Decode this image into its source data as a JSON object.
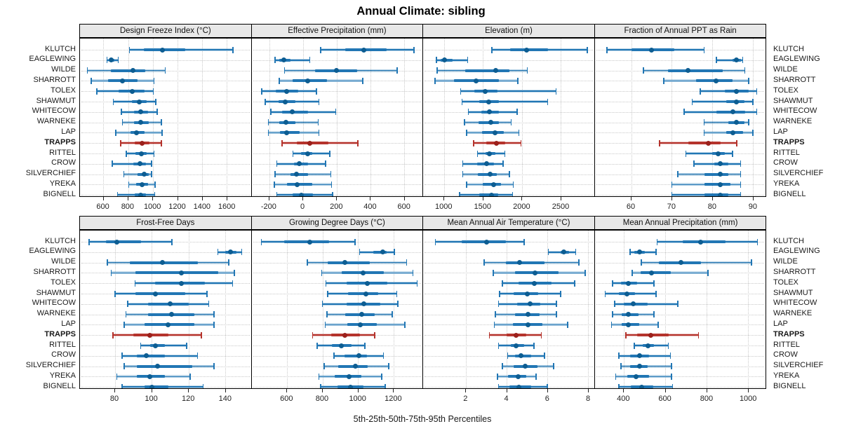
{
  "title": "Annual Climate: sibling",
  "caption": "5th-25th-50th-75th-95th Percentiles",
  "percentile_labels": [
    "5th",
    "25th",
    "50th",
    "75th",
    "95th"
  ],
  "stations": [
    "KLUTCH",
    "EAGLEWING",
    "WILDE",
    "SHARROTT",
    "TOLEX",
    "SHAWMUT",
    "WHITECOW",
    "WARNEKE",
    "LAP",
    "TRAPPS",
    "RITTEL",
    "CROW",
    "SILVERCHIEF",
    "YREKA",
    "BIGNELL"
  ],
  "highlight_station": "TRAPPS",
  "colors": {
    "normal_line": "#2176b4",
    "normal_band": "rgba(33,118,180,0.30)",
    "normal_dot": "#0d5d92",
    "highlight_line": "#b5332c",
    "highlight_band": "rgba(181,51,44,0.30)",
    "highlight_dot": "#9b211c",
    "strip_bg": "#e8e8e8",
    "grid": "#c9c9c9"
  },
  "chart_data": [
    {
      "type": "dotplot-interval",
      "id": "design-freeze-index",
      "title": "Design Freeze Index (°C)",
      "xlim": [
        410,
        1795
      ],
      "ticks": [
        600,
        800,
        1000,
        1200,
        1400,
        1600
      ],
      "series": {
        "KLUTCH": [
          810,
          930,
          1080,
          1260,
          1650
        ],
        "EAGLEWING": [
          630,
          650,
          665,
          690,
          720
        ],
        "WILDE": [
          470,
          660,
          840,
          940,
          1100
        ],
        "SHARROTT": [
          500,
          640,
          755,
          875,
          1010
        ],
        "TOLEX": [
          545,
          720,
          835,
          930,
          1005
        ],
        "SHAWMUT": [
          680,
          830,
          890,
          950,
          1025
        ],
        "WHITECOW": [
          745,
          845,
          900,
          960,
          1035
        ],
        "WARNEKE": [
          755,
          845,
          900,
          965,
          1070
        ],
        "LAP": [
          700,
          820,
          865,
          930,
          1075
        ],
        "TRAPPS": [
          740,
          855,
          915,
          975,
          1070
        ],
        "RITTEL": [
          785,
          860,
          905,
          950,
          1010
        ],
        "CROW": [
          670,
          840,
          895,
          945,
          990
        ],
        "SILVERCHIEF": [
          765,
          875,
          930,
          965,
          990
        ],
        "YREKA": [
          805,
          865,
          915,
          960,
          1020
        ],
        "BIGNELL": [
          715,
          855,
          900,
          945,
          1015
        ]
      }
    },
    {
      "type": "dotplot-interval",
      "id": "effective-precipitation",
      "title": "Effective Precipitation (mm)",
      "xlim": [
        -305,
        710
      ],
      "ticks": [
        -200,
        0,
        200,
        400,
        600
      ],
      "series": {
        "KLUTCH": [
          105,
          250,
          360,
          495,
          660
        ],
        "EAGLEWING": [
          -165,
          -140,
          -115,
          -75,
          40
        ],
        "WILDE": [
          -110,
          70,
          200,
          320,
          560
        ],
        "SHARROTT": [
          -140,
          -60,
          30,
          140,
          355
        ],
        "TOLEX": [
          -245,
          -160,
          -95,
          -30,
          80
        ],
        "SHAWMUT": [
          -225,
          -145,
          -105,
          -45,
          95
        ],
        "WHITECOW": [
          -190,
          -125,
          -65,
          30,
          195
        ],
        "WARNEKE": [
          -205,
          -140,
          -100,
          -45,
          90
        ],
        "LAP": [
          -205,
          -135,
          -95,
          -20,
          95
        ],
        "TRAPPS": [
          -125,
          -35,
          40,
          150,
          325
        ],
        "RITTEL": [
          -60,
          -10,
          30,
          55,
          160
        ],
        "CROW": [
          -155,
          -55,
          -20,
          30,
          135
        ],
        "SILVERCHIEF": [
          -165,
          -75,
          -40,
          30,
          165
        ],
        "YREKA": [
          -170,
          -95,
          -35,
          55,
          170
        ],
        "BIGNELL": [
          -155,
          -60,
          -10,
          60,
          175
        ]
      }
    },
    {
      "type": "dotplot-interval",
      "id": "elevation",
      "title": "Elevation (m)",
      "xlim": [
        730,
        2930
      ],
      "ticks": [
        1000,
        1500,
        2000,
        2500
      ],
      "series": {
        "KLUTCH": [
          1615,
          1845,
          2060,
          2330,
          2840
        ],
        "EAGLEWING": [
          900,
          955,
          1000,
          1110,
          1300
        ],
        "WILDE": [
          910,
          1270,
          1660,
          1840,
          2070
        ],
        "SHARROTT": [
          880,
          1130,
          1410,
          1700,
          1950
        ],
        "TOLEX": [
          1210,
          1390,
          1530,
          1680,
          2440
        ],
        "SHAWMUT": [
          1230,
          1450,
          1570,
          1700,
          2330
        ],
        "WHITECOW": [
          1310,
          1480,
          1580,
          1700,
          1940
        ],
        "WARNEKE": [
          1260,
          1440,
          1600,
          1700,
          1860
        ],
        "LAP": [
          1290,
          1490,
          1650,
          1770,
          1960
        ],
        "TRAPPS": [
          1380,
          1540,
          1670,
          1780,
          1990
        ],
        "RITTEL": [
          1430,
          1530,
          1580,
          1660,
          1780
        ],
        "CROW": [
          1240,
          1420,
          1550,
          1640,
          1760
        ],
        "SILVERCHIEF": [
          1240,
          1430,
          1590,
          1680,
          1840
        ],
        "YREKA": [
          1290,
          1500,
          1640,
          1730,
          1890
        ],
        "BIGNELL": [
          1200,
          1450,
          1610,
          1690,
          1880
        ]
      }
    },
    {
      "type": "dotplot-interval",
      "id": "fraction-ppt-rain",
      "title": "Fraction of Annual PPT as Rain",
      "xlim": [
        51,
        93.2
      ],
      "ticks": [
        60,
        70,
        80,
        90
      ],
      "series": {
        "KLUTCH": [
          54,
          60,
          65,
          70.5,
          78
        ],
        "EAGLEWING": [
          81,
          85,
          86,
          87,
          87.5
        ],
        "WILDE": [
          63,
          69,
          74,
          82.5,
          88
        ],
        "SHARROTT": [
          68,
          76,
          81,
          85,
          89
        ],
        "TOLEX": [
          77,
          83,
          86,
          89,
          91
        ],
        "SHAWMUT": [
          75,
          83.5,
          86,
          88,
          90
        ],
        "WHITECOW": [
          73,
          81,
          85,
          88,
          91
        ],
        "WARNEKE": [
          78,
          84,
          86,
          88,
          89
        ],
        "LAP": [
          78,
          83.5,
          85,
          87.5,
          90
        ],
        "TRAPPS": [
          67,
          74,
          79,
          82,
          86
        ],
        "RITTEL": [
          73.5,
          80,
          81.5,
          83,
          85
        ],
        "CROW": [
          75.5,
          80.5,
          82,
          84,
          87
        ],
        "SILVERCHIEF": [
          71.5,
          78,
          82,
          84,
          87
        ],
        "YREKA": [
          70,
          78,
          82,
          84.5,
          87
        ],
        "BIGNELL": [
          70,
          78,
          82,
          84,
          87
        ]
      }
    },
    {
      "type": "dotplot-interval",
      "id": "frost-free-days",
      "title": "Frost-Free Days",
      "xlim": [
        61,
        154
      ],
      "ticks": [
        80,
        100,
        120,
        140
      ],
      "series": {
        "KLUTCH": [
          66,
          75,
          81,
          94,
          111
        ],
        "EAGLEWING": [
          136,
          140,
          143,
          146,
          149
        ],
        "WILDE": [
          76,
          88,
          106,
          125,
          142
        ],
        "SHARROTT": [
          78,
          91,
          116,
          136,
          145
        ],
        "TOLEX": [
          91,
          102,
          116,
          129,
          144
        ],
        "SHAWMUT": [
          80,
          91,
          102,
          118,
          130
        ],
        "WHITECOW": [
          87,
          98,
          110,
          120,
          131
        ],
        "WARNEKE": [
          86,
          98,
          111,
          123,
          134
        ],
        "LAP": [
          85,
          96,
          109,
          123,
          134
        ],
        "TRAPPS": [
          79,
          90,
          99,
          109,
          127
        ],
        "RITTEL": [
          94,
          99,
          102,
          107,
          119
        ],
        "CROW": [
          84,
          92,
          97,
          107,
          125
        ],
        "SILVERCHIEF": [
          85,
          92,
          103,
          122,
          134
        ],
        "YREKA": [
          81,
          92,
          99,
          107,
          121
        ],
        "BIGNELL": [
          84,
          96,
          100,
          109,
          128
        ]
      }
    },
    {
      "type": "dotplot-interval",
      "id": "growing-degree-days",
      "title": "Growing Degree Days (°C)",
      "xlim": [
        400,
        1365
      ],
      "ticks": [
        600,
        800,
        1000,
        1200
      ],
      "series": {
        "KLUTCH": [
          455,
          585,
          730,
          835,
          985
        ],
        "EAGLEWING": [
          1010,
          1085,
          1140,
          1160,
          1205
        ],
        "WILDE": [
          715,
          830,
          925,
          1065,
          1275
        ],
        "SHARROTT": [
          795,
          910,
          1030,
          1145,
          1310
        ],
        "TOLEX": [
          820,
          935,
          1055,
          1165,
          1335
        ],
        "SHAWMUT": [
          830,
          945,
          1045,
          1115,
          1220
        ],
        "WHITECOW": [
          800,
          935,
          1035,
          1125,
          1225
        ],
        "WARNEKE": [
          825,
          930,
          1020,
          1095,
          1195
        ],
        "LAP": [
          815,
          940,
          1015,
          1105,
          1265
        ],
        "TRAPPS": [
          745,
          850,
          925,
          1010,
          1095
        ],
        "RITTEL": [
          770,
          855,
          905,
          965,
          1040
        ],
        "CROW": [
          865,
          925,
          1005,
          1050,
          1145
        ],
        "SILVERCHIEF": [
          810,
          890,
          985,
          1055,
          1175
        ],
        "YREKA": [
          780,
          870,
          950,
          1020,
          1135
        ],
        "BIGNELL": [
          790,
          885,
          960,
          1030,
          1155
        ]
      }
    },
    {
      "type": "dotplot-interval",
      "id": "mean-annual-air-temperature",
      "title": "Mean Annual Air Temperature (°C)",
      "xlim": [
        -0.1,
        8.3
      ],
      "ticks": [
        2,
        4,
        6,
        8
      ],
      "series": {
        "KLUTCH": [
          0.5,
          1.8,
          3.0,
          3.95,
          4.85
        ],
        "EAGLEWING": [
          6.05,
          6.65,
          6.8,
          7.05,
          7.4
        ],
        "WILDE": [
          2.9,
          3.95,
          4.65,
          5.85,
          7.55
        ],
        "SHARROTT": [
          3.35,
          4.4,
          5.4,
          6.55,
          7.85
        ],
        "TOLEX": [
          3.8,
          4.6,
          5.35,
          6.2,
          7.35
        ],
        "SHAWMUT": [
          3.65,
          4.35,
          5.0,
          5.55,
          6.65
        ],
        "WHITECOW": [
          3.6,
          4.5,
          5.15,
          5.65,
          6.45
        ],
        "WARNEKE": [
          3.45,
          4.4,
          5.05,
          5.6,
          6.45
        ],
        "LAP": [
          3.4,
          4.3,
          5.05,
          5.75,
          7.0
        ],
        "TRAPPS": [
          3.15,
          4.0,
          4.45,
          4.95,
          5.7
        ],
        "RITTEL": [
          3.6,
          4.2,
          4.45,
          4.85,
          5.35
        ],
        "CROW": [
          4.05,
          4.4,
          4.7,
          5.2,
          5.85
        ],
        "SILVERCHIEF": [
          3.8,
          4.35,
          4.9,
          5.5,
          6.3
        ],
        "YREKA": [
          3.55,
          4.05,
          4.55,
          4.95,
          5.45
        ],
        "BIGNELL": [
          3.6,
          4.15,
          4.6,
          5.2,
          6.0
        ]
      }
    },
    {
      "type": "dotplot-interval",
      "id": "mean-annual-precipitation",
      "title": "Mean Annual Precipitation (mm)",
      "xlim": [
        260,
        1085
      ],
      "ticks": [
        400,
        600,
        800,
        1000
      ],
      "series": {
        "KLUTCH": [
          560,
          685,
          770,
          890,
          1045
        ],
        "EAGLEWING": [
          430,
          450,
          475,
          500,
          555
        ],
        "WILDE": [
          485,
          570,
          675,
          770,
          1015
        ],
        "SHARROTT": [
          440,
          480,
          535,
          625,
          805
        ],
        "TOLEX": [
          345,
          385,
          420,
          465,
          545
        ],
        "SHAWMUT": [
          310,
          375,
          415,
          455,
          555
        ],
        "WHITECOW": [
          355,
          400,
          445,
          515,
          660
        ],
        "WARNEKE": [
          345,
          390,
          420,
          470,
          545
        ],
        "LAP": [
          340,
          390,
          420,
          475,
          565
        ],
        "TRAPPS": [
          410,
          465,
          530,
          615,
          760
        ],
        "RITTEL": [
          450,
          490,
          515,
          545,
          615
        ],
        "CROW": [
          375,
          430,
          475,
          520,
          625
        ],
        "SILVERCHIEF": [
          385,
          430,
          475,
          515,
          630
        ],
        "YREKA": [
          360,
          415,
          460,
          520,
          630
        ],
        "BIGNELL": [
          375,
          435,
          485,
          540,
          635
        ]
      }
    }
  ]
}
